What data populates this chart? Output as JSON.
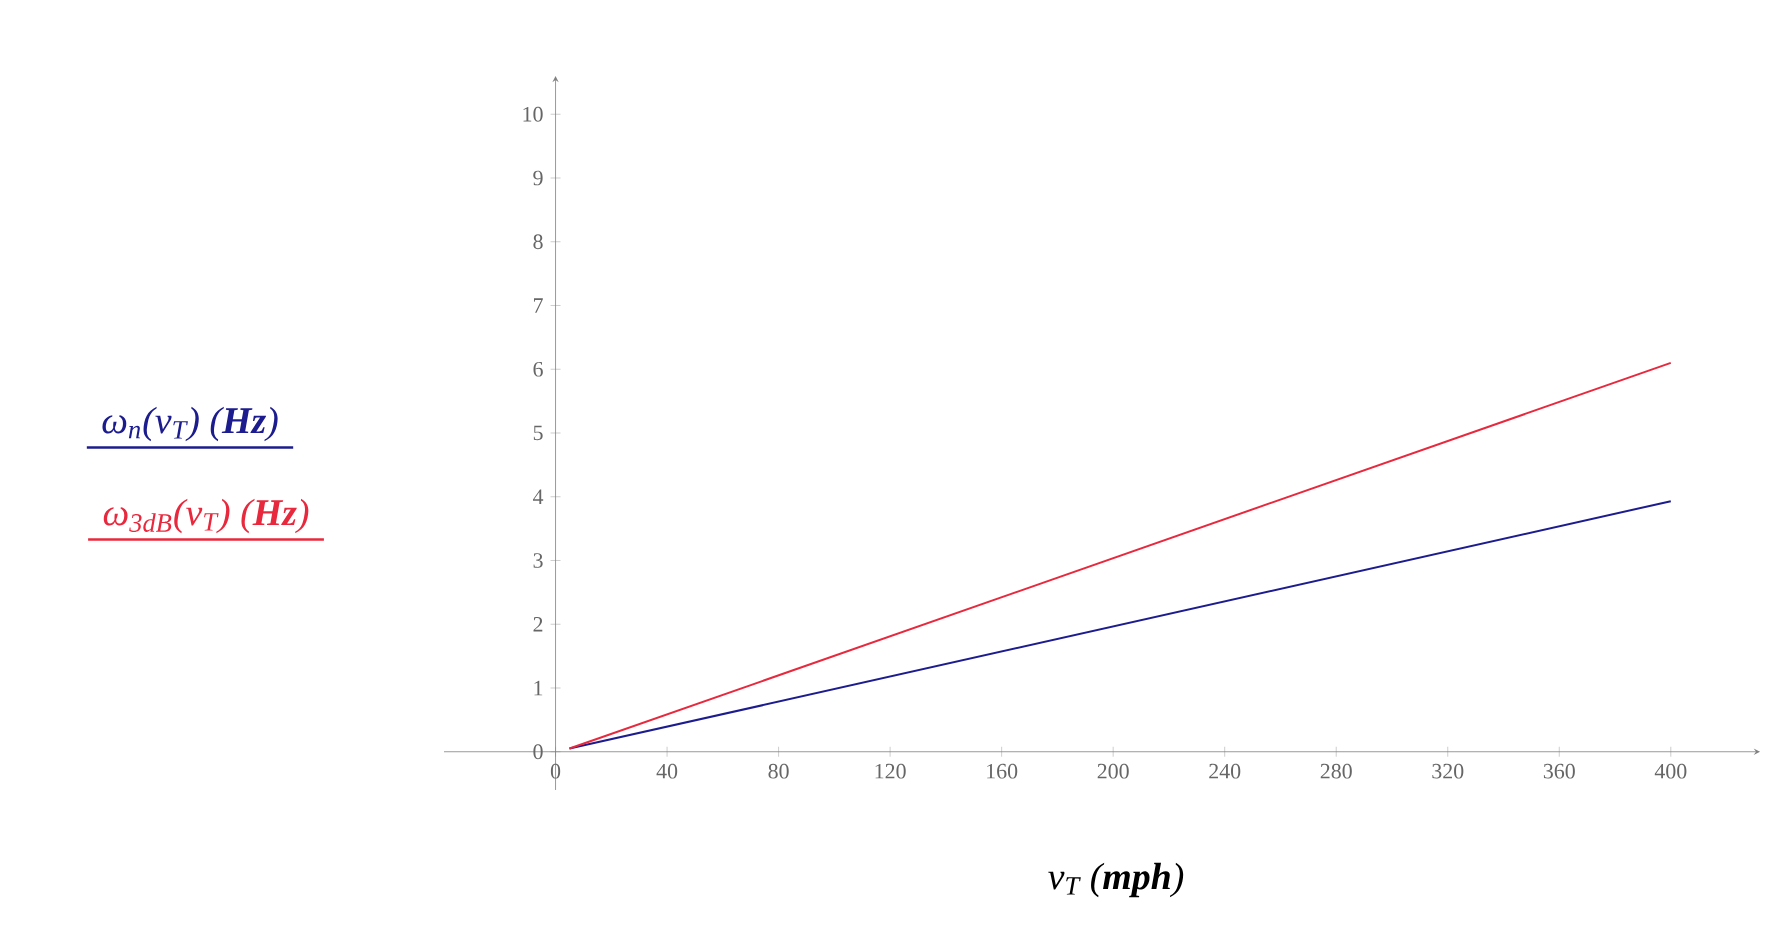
{
  "chart_data": {
    "type": "line",
    "xlabel": "v$_{T}$  (**mph**)",
    "legend": "left",
    "x": [
      5,
      400
    ],
    "series": [
      {
        "name": "ω$_{n}$(v$_{T}$)  (**Hz**)",
        "color": "#1c1c8e",
        "values": [
          0.05,
          3.93
        ]
      },
      {
        "name": "ω$_{3dB}$(v$_{T}$)  (**Hz**)",
        "color": "#e8283c",
        "values": [
          0.05,
          6.1
        ]
      }
    ],
    "xlim": [
      -40,
      432
    ],
    "ylim": [
      -0.6,
      10.6
    ],
    "xticks": [
      0,
      40,
      80,
      120,
      160,
      200,
      240,
      280,
      320,
      360,
      400
    ],
    "yticks": [
      0,
      1,
      2,
      3,
      4,
      5,
      6,
      7,
      8,
      9,
      10
    ]
  }
}
